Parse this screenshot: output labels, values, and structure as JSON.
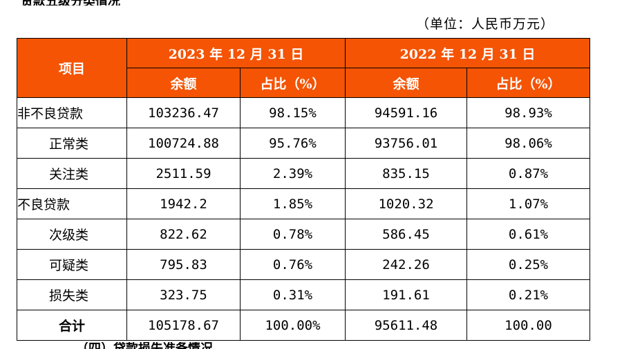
{
  "top_text": "贷款五级分类情况",
  "unit": "（单位：人民币万元）",
  "table": {
    "col_item": "项目",
    "periods": [
      "2023 年 12 月 31 日",
      "2022 年 12 月 31 日"
    ],
    "sub_headers": [
      "余额",
      "占比（%）",
      "余额",
      "占比（%）"
    ],
    "rows": [
      {
        "label": "非不良贷款",
        "values": [
          "103236.47",
          "98.15%",
          "94591.16",
          "98.93%"
        ]
      },
      {
        "label": "正常类",
        "values": [
          "100724.88",
          "95.76%",
          "93756.01",
          "98.06%"
        ]
      },
      {
        "label": "关注类",
        "values": [
          "2511.59",
          "2.39%",
          "835.15",
          "0.87%"
        ]
      },
      {
        "label": "不良贷款",
        "values": [
          "1942.2",
          "1.85%",
          "1020.32",
          "1.07%"
        ]
      },
      {
        "label": "次级类",
        "values": [
          "822.62",
          "0.78%",
          "586.45",
          "0.61%"
        ]
      },
      {
        "label": "可疑类",
        "values": [
          "795.83",
          "0.76%",
          "242.26",
          "0.25%"
        ]
      },
      {
        "label": "损失类",
        "values": [
          "323.75",
          "0.31%",
          "191.61",
          "0.21%"
        ]
      },
      {
        "label": "合计",
        "values": [
          "105178.67",
          "100.00%",
          "95611.48",
          "100.00"
        ]
      }
    ]
  },
  "bottom_text": "（四）贷款损失准备情况"
}
